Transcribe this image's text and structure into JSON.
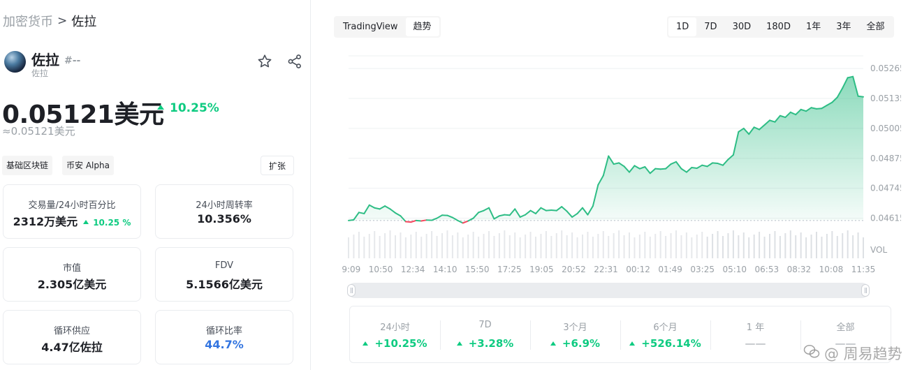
{
  "breadcrumb": {
    "root": "加密货币",
    "separator": ">",
    "current": "佐拉"
  },
  "coin": {
    "name": "佐拉",
    "rank": "#--",
    "subtitle": "佐拉",
    "price": "0.05121美元",
    "change": "10.25%",
    "approx": "≈0.05121美元"
  },
  "tags": [
    "基础区块链",
    "币安 Alpha"
  ],
  "expand_label": "扩张",
  "stats": [
    {
      "label": "交易量/24小时百分比",
      "value": "2312万美元",
      "change": "10.25 %"
    },
    {
      "label": "24小时周转率",
      "value": "10.356%"
    },
    {
      "label": "市值",
      "value": "2.305亿美元"
    },
    {
      "label": "FDV",
      "value": "5.1566亿美元"
    },
    {
      "label": "循环供应",
      "value": "4.47亿佐拉"
    },
    {
      "label": "循环比率",
      "value": "44.7%"
    }
  ],
  "chart_tabs": [
    "TradingView",
    "趋势"
  ],
  "chart_tab_active": 1,
  "range_tabs": [
    "1D",
    "7D",
    "30D",
    "180D",
    "1年",
    "3年",
    "全部"
  ],
  "range_tab_active": 0,
  "colors": {
    "up": "#0ecb81",
    "down": "#f6465d",
    "line": "#2ebd85",
    "blue": "#3375e0"
  },
  "chart_data": {
    "type": "area",
    "x_ticks": [
      "09:09",
      "10:50",
      "12:34",
      "14:10",
      "15:50",
      "17:25",
      "19:05",
      "20:52",
      "22:31",
      "00:12",
      "01:49",
      "03:25",
      "05:10",
      "06:53",
      "08:32",
      "10:08",
      "11:35"
    ],
    "y_ticks": [
      "0.05265",
      "0.05135",
      "0.05005",
      "0.04875",
      "0.04745",
      "0.04615"
    ],
    "ylim": [
      0.0455,
      0.0532
    ],
    "baseline": 0.04605,
    "volume_label": "VOL",
    "values": [
      0.04605,
      0.04608,
      0.0464,
      0.04635,
      0.04672,
      0.0466,
      0.04655,
      0.04668,
      0.04655,
      0.04638,
      0.04625,
      0.046,
      0.04598,
      0.04605,
      0.04603,
      0.04607,
      0.04606,
      0.04615,
      0.04628,
      0.04627,
      0.04618,
      0.04605,
      0.04594,
      0.04603,
      0.04615,
      0.0464,
      0.04648,
      0.0466,
      0.04612,
      0.04625,
      0.0463,
      0.04628,
      0.04655,
      0.0462,
      0.0463,
      0.04648,
      0.04635,
      0.0466,
      0.04648,
      0.0465,
      0.04648,
      0.04665,
      0.04645,
      0.0462,
      0.04635,
      0.0466,
      0.0463,
      0.04668,
      0.0476,
      0.048,
      0.04885,
      0.0485,
      0.04855,
      0.0484,
      0.04815,
      0.04843,
      0.0483,
      0.04838,
      0.0481,
      0.0483,
      0.04828,
      0.0483,
      0.0485,
      0.0486,
      0.0483,
      0.04815,
      0.04835,
      0.04832,
      0.04845,
      0.0484,
      0.04855,
      0.04853,
      0.04845,
      0.0487,
      0.0489,
      0.0499,
      0.05005,
      0.0498,
      0.0501,
      0.05,
      0.0502,
      0.0504,
      0.05033,
      0.0506,
      0.05053,
      0.05075,
      0.05065,
      0.05087,
      0.0508,
      0.05095,
      0.0509,
      0.05092,
      0.05105,
      0.05118,
      0.0514,
      0.0518,
      0.05225,
      0.0523,
      0.05145,
      0.05142
    ]
  },
  "performance": [
    {
      "label": "24小时",
      "value": "+10.25%",
      "up": true
    },
    {
      "label": "7D",
      "value": "+3.28%",
      "up": true
    },
    {
      "label": "3个月",
      "value": "+6.9%",
      "up": true
    },
    {
      "label": "6个月",
      "value": "+526.14%",
      "up": true
    },
    {
      "label": "1 年",
      "value": "——",
      "up": false
    },
    {
      "label": "全部",
      "value": "——",
      "up": false
    }
  ],
  "watermark": "@ 周易趋势"
}
